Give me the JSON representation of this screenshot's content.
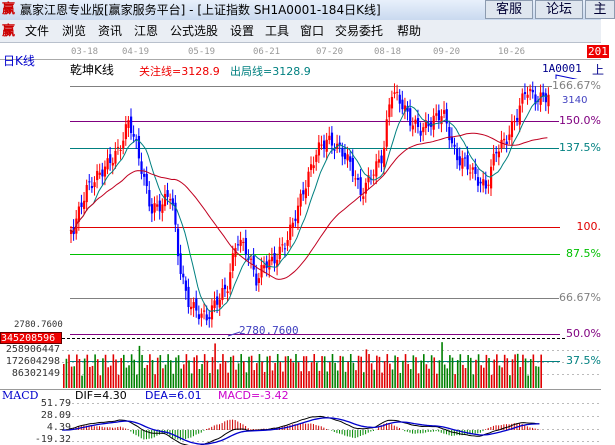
{
  "window": {
    "logo": "赢",
    "title": "赢家江恩专业版[赢家服务平台] - [上证指数  SH1A0001-184日K线]",
    "buttons": [
      "客服",
      "论坛",
      "主"
    ]
  },
  "menu": {
    "logo": "赢",
    "items": [
      "文件",
      "浏览",
      "资讯",
      "江恩",
      "公式选股",
      "设置",
      "工具",
      "窗口",
      "交易委托",
      "帮助"
    ]
  },
  "dates": [
    "03-18",
    "04-19",
    "05-19",
    "06-21",
    "07-20",
    "08-18",
    "09-20",
    "10-26"
  ],
  "date_flag": "201",
  "period_label": "日K线",
  "chart": {
    "indicator": "乾坤K线",
    "focus_line": "关注线=3128.9",
    "exit_line": "出局线=3128.9",
    "code": "1A0001",
    "code_suffix": "上",
    "low_label": "2780.7600",
    "low_axis_label": "2780.7600",
    "overlap_label": "3140"
  },
  "levels": [
    {
      "label": "166.67%",
      "color": "#808080"
    },
    {
      "label": "150.0%",
      "color": "#800080"
    },
    {
      "label": "137.5%",
      "color": "#008080"
    },
    {
      "label": "100.",
      "color": "#e00000"
    },
    {
      "label": "87.5%",
      "color": "#00c000"
    },
    {
      "label": "66.67%",
      "color": "#808080"
    },
    {
      "label": "50.0%",
      "color": "#800080"
    },
    {
      "label": "37.5%",
      "color": "#008080"
    }
  ],
  "volume": {
    "axis": [
      "345208596",
      "258906447",
      "172604298",
      "86302149"
    ]
  },
  "macd": {
    "title": "MACD",
    "dif": "DIF=4.30",
    "dea": "DEA=6.01",
    "macd": "MACD=-3.42",
    "axis": [
      "51.79",
      "28.09",
      "4.39",
      "-19.32"
    ]
  },
  "colors": {
    "up": "#ff0000",
    "down": "#0000ff",
    "vol_up": "#e00000",
    "vol_down": "#008000"
  }
}
